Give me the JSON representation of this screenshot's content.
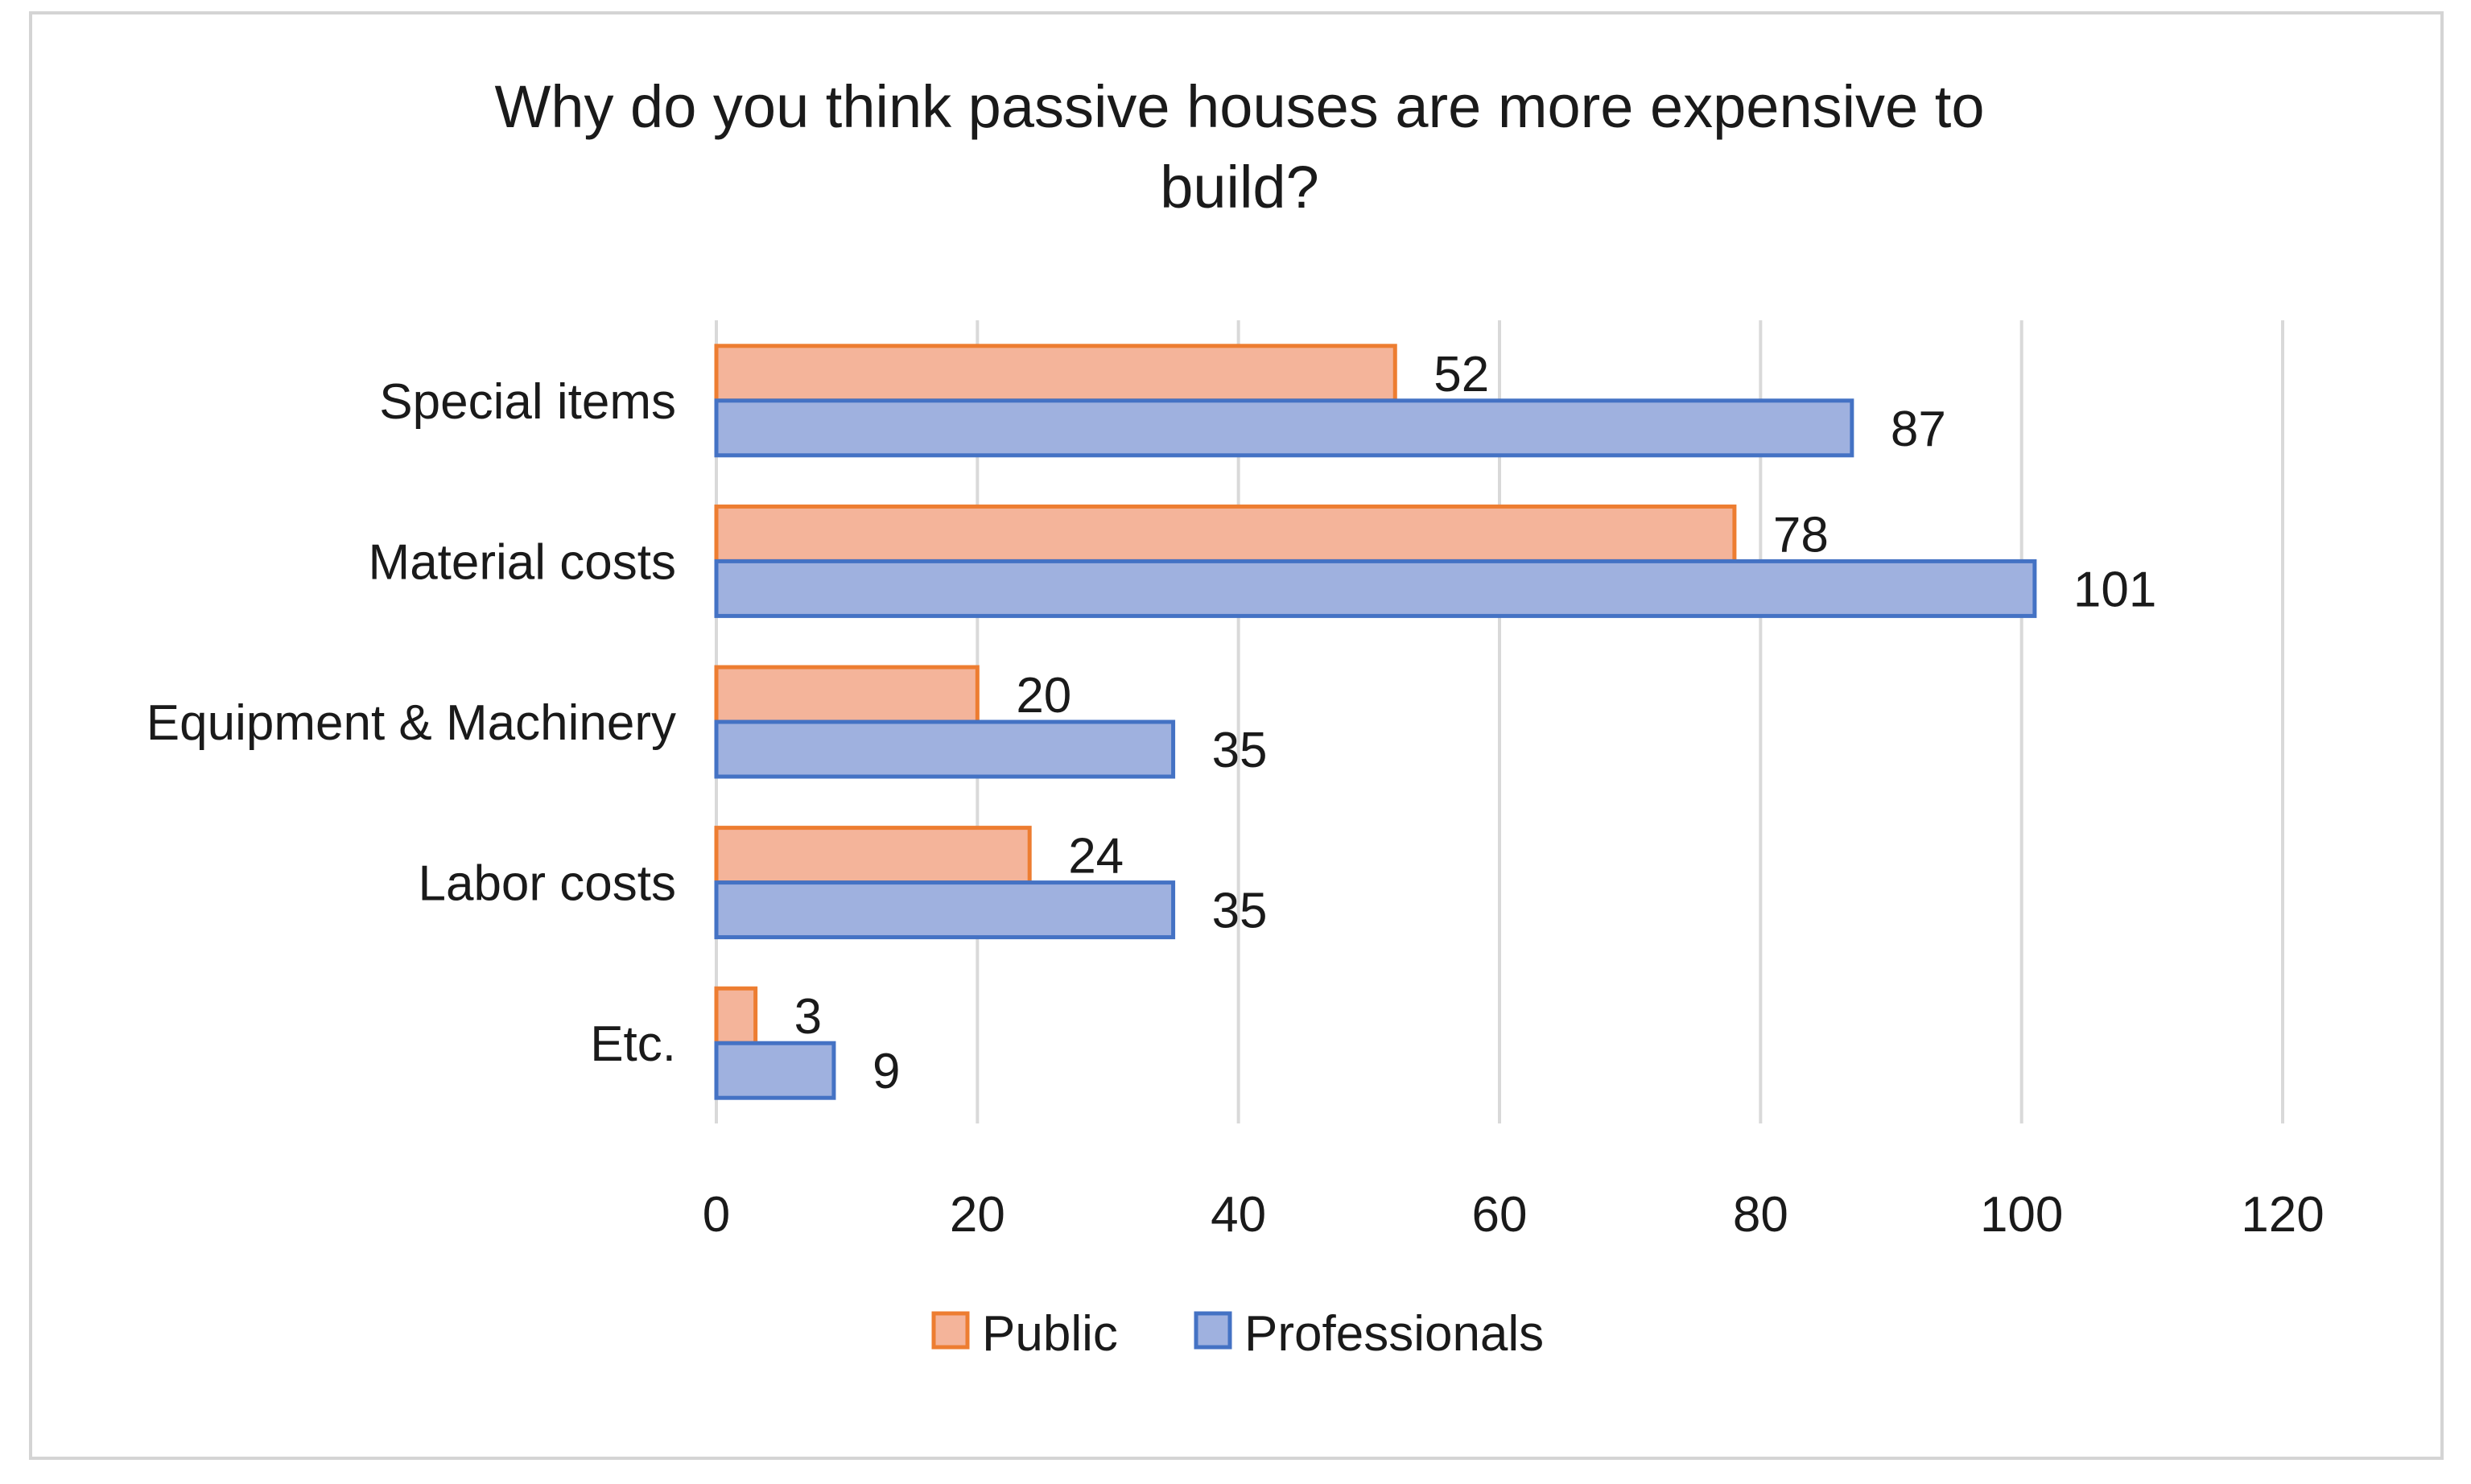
{
  "chart_data": {
    "type": "bar",
    "orientation": "horizontal",
    "title_lines": [
      "Why do you think passive houses are more expensive to",
      "build?"
    ],
    "categories": [
      "Special items",
      "Material costs",
      "Equipment & Machinery",
      "Labor costs",
      "Etc."
    ],
    "series": [
      {
        "name": "Public",
        "values": [
          52,
          78,
          20,
          24,
          3
        ],
        "fill": "#f4b49a",
        "stroke": "#ed7d31"
      },
      {
        "name": "Professionals",
        "values": [
          87,
          101,
          35,
          35,
          9
        ],
        "fill": "#9fb1df",
        "stroke": "#4472c4"
      }
    ],
    "xlim": [
      0,
      120
    ],
    "xticks": [
      "0",
      "20",
      "40",
      "60",
      "80",
      "100",
      "120"
    ],
    "grid": true,
    "gridline_color": "#d9d9d9",
    "legend": {
      "placement": "bottom",
      "entries": [
        "Public",
        "Professionals"
      ]
    },
    "data_labels": true
  }
}
